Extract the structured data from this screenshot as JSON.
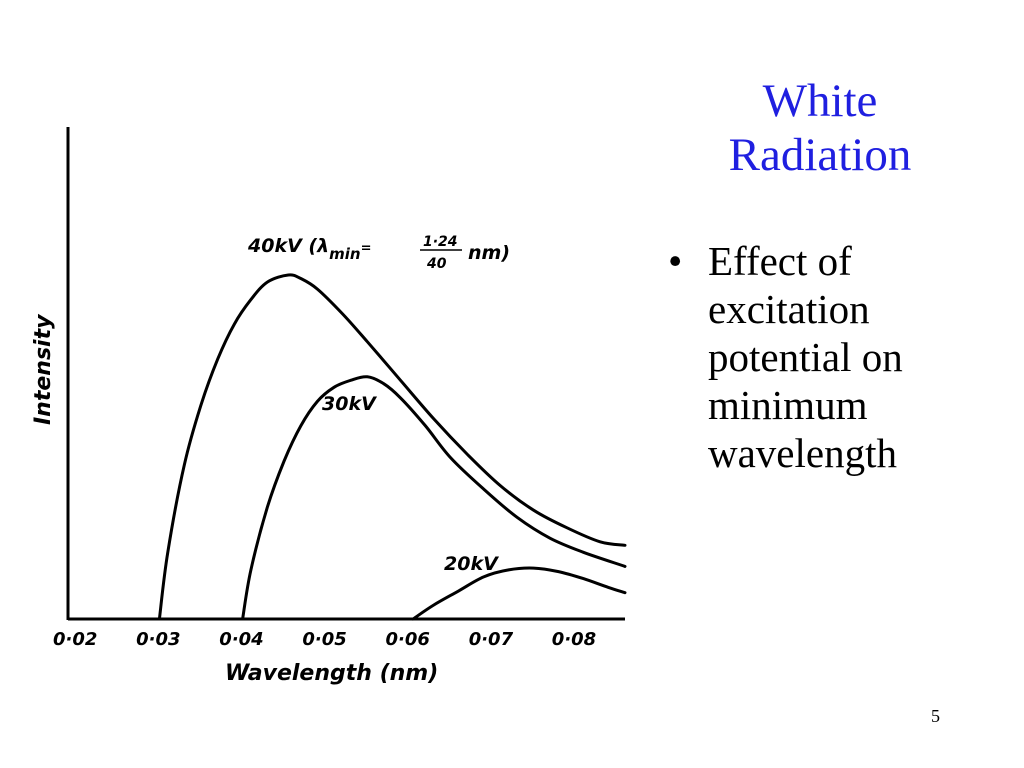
{
  "slide": {
    "title_lines": [
      "White",
      "Radiation"
    ],
    "title_color": "#1f1fe0",
    "bullet_glyph": "•",
    "bullet_lines": [
      "Effect of",
      "excitation",
      "potential on",
      "minimum",
      "wavelength"
    ],
    "page_number": "5"
  },
  "chart_data": {
    "type": "line",
    "xlabel": "Wavelength (nm)",
    "ylabel": "Intensity",
    "xlim": [
      0.02,
      0.087
    ],
    "ylim": [
      0,
      1
    ],
    "x_ticks": [
      "0·02",
      "0·03",
      "0·04",
      "0·05",
      "0·06",
      "0·07",
      "0·08"
    ],
    "x_tick_values": [
      0.02,
      0.03,
      0.04,
      0.05,
      0.06,
      0.07,
      0.08
    ],
    "grid": false,
    "series": [
      {
        "name": "40kV",
        "label_parts": {
          "prefix": "40kV (λ",
          "subscript": "min",
          "equals": "=",
          "numerator": "1·24",
          "denominator": "40",
          "suffix": "nm)"
        },
        "points": [
          [
            0.031,
            0.0
          ],
          [
            0.032,
            0.19
          ],
          [
            0.034,
            0.44
          ],
          [
            0.036,
            0.61
          ],
          [
            0.038,
            0.74
          ],
          [
            0.04,
            0.84
          ],
          [
            0.042,
            0.91
          ],
          [
            0.044,
            0.96
          ],
          [
            0.0465,
            0.98
          ],
          [
            0.048,
            0.97
          ],
          [
            0.05,
            0.94
          ],
          [
            0.053,
            0.87
          ],
          [
            0.056,
            0.79
          ],
          [
            0.06,
            0.68
          ],
          [
            0.064,
            0.57
          ],
          [
            0.068,
            0.47
          ],
          [
            0.072,
            0.38
          ],
          [
            0.076,
            0.31
          ],
          [
            0.08,
            0.26
          ],
          [
            0.084,
            0.22
          ],
          [
            0.087,
            0.21
          ]
        ]
      },
      {
        "name": "30kV",
        "label_parts": {
          "text": "30kV"
        },
        "points": [
          [
            0.041,
            0.0
          ],
          [
            0.042,
            0.14
          ],
          [
            0.044,
            0.32
          ],
          [
            0.046,
            0.45
          ],
          [
            0.048,
            0.55
          ],
          [
            0.05,
            0.62
          ],
          [
            0.052,
            0.66
          ],
          [
            0.054,
            0.68
          ],
          [
            0.056,
            0.69
          ],
          [
            0.058,
            0.67
          ],
          [
            0.06,
            0.63
          ],
          [
            0.063,
            0.55
          ],
          [
            0.066,
            0.46
          ],
          [
            0.07,
            0.37
          ],
          [
            0.074,
            0.29
          ],
          [
            0.078,
            0.23
          ],
          [
            0.082,
            0.19
          ],
          [
            0.087,
            0.15
          ]
        ]
      },
      {
        "name": "20kV",
        "label_parts": {
          "text": "20kV"
        },
        "points": [
          [
            0.0615,
            0.0
          ],
          [
            0.064,
            0.04
          ],
          [
            0.067,
            0.08
          ],
          [
            0.07,
            0.12
          ],
          [
            0.073,
            0.14
          ],
          [
            0.076,
            0.145
          ],
          [
            0.079,
            0.135
          ],
          [
            0.082,
            0.115
          ],
          [
            0.085,
            0.09
          ],
          [
            0.087,
            0.075
          ]
        ]
      }
    ]
  }
}
